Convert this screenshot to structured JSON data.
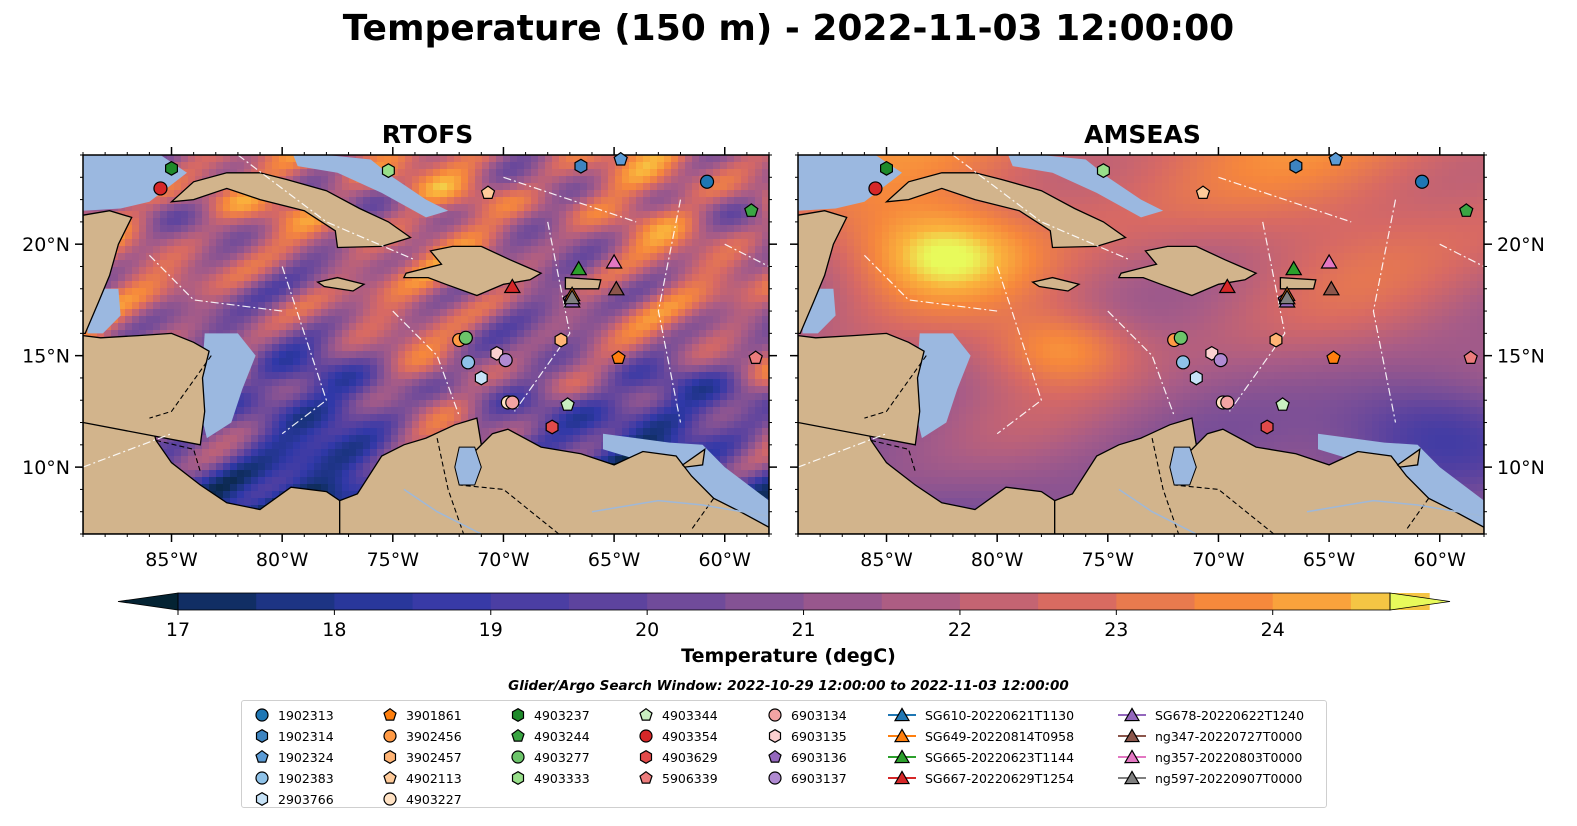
{
  "title": "Temperature (150 m) - 2022-11-03 12:00:00",
  "panels": [
    {
      "title": "RTOFS",
      "style": "rtofs"
    },
    {
      "title": "AMSEAS",
      "style": "amseas"
    }
  ],
  "map": {
    "lon_range": [
      -89,
      -58
    ],
    "lat_range": [
      7,
      24
    ],
    "lon_ticks": [
      -85,
      -80,
      -75,
      -70,
      -65,
      -60
    ],
    "lon_tick_labels": [
      "85°W",
      "80°W",
      "75°W",
      "70°W",
      "65°W",
      "60°W"
    ],
    "lat_ticks": [
      10,
      15,
      20
    ],
    "lat_tick_labels": [
      "10°N",
      "15°N",
      "20°N"
    ],
    "colors": {
      "land": "#d2b48c",
      "shallow_water": "#9bb8e0"
    }
  },
  "colorbar": {
    "label": "Temperature (degC)",
    "range": [
      17,
      24.75
    ],
    "step": 0.5,
    "ticks": [
      17,
      18,
      19,
      20,
      21,
      22,
      23,
      24
    ],
    "tick_labels": [
      "17",
      "18",
      "19",
      "20",
      "21",
      "22",
      "23",
      "24"
    ],
    "extend": "both",
    "colormap": "thermal"
  },
  "legend": {
    "title": "Glider/Argo Search Window: 2022-10-29 12:00:00 to 2022-11-03 12:00:00",
    "columns": [
      [
        {
          "label": "1902313",
          "marker": "circle",
          "color": "#1f77b4"
        },
        {
          "label": "1902314",
          "marker": "hexagon",
          "color": "#3d84c0"
        },
        {
          "label": "1902324",
          "marker": "pentagon",
          "color": "#5b9bd5"
        },
        {
          "label": "1902383",
          "marker": "circle",
          "color": "#8fc2e8"
        },
        {
          "label": "2903766",
          "marker": "hexagon",
          "color": "#c6e2f7"
        }
      ],
      [
        {
          "label": "3901861",
          "marker": "pentagon",
          "color": "#ff7f0e"
        },
        {
          "label": "3902456",
          "marker": "circle",
          "color": "#ff9a45"
        },
        {
          "label": "3902457",
          "marker": "hexagon",
          "color": "#ffb475"
        },
        {
          "label": "4902113",
          "marker": "pentagon",
          "color": "#ffcb9a"
        },
        {
          "label": "4903227",
          "marker": "circle",
          "color": "#ffe2c4"
        }
      ],
      [
        {
          "label": "4903237",
          "marker": "hexagon",
          "color": "#1e8a2a"
        },
        {
          "label": "4903244",
          "marker": "pentagon",
          "color": "#3aa543"
        },
        {
          "label": "4903277",
          "marker": "circle",
          "color": "#6cc46a"
        },
        {
          "label": "4903333",
          "marker": "hexagon",
          "color": "#98df8a"
        }
      ],
      [
        {
          "label": "4903344",
          "marker": "pentagon",
          "color": "#c9efc0"
        },
        {
          "label": "4903354",
          "marker": "circle",
          "color": "#d62728"
        },
        {
          "label": "4903629",
          "marker": "hexagon",
          "color": "#e24a4a"
        },
        {
          "label": "5906339",
          "marker": "pentagon",
          "color": "#ec7c7c"
        }
      ],
      [
        {
          "label": "6903134",
          "marker": "circle",
          "color": "#f4a3a3"
        },
        {
          "label": "6903135",
          "marker": "hexagon",
          "color": "#fbd0d0"
        },
        {
          "label": "6903136",
          "marker": "pentagon",
          "color": "#9467bd"
        },
        {
          "label": "6903137",
          "marker": "circle",
          "color": "#b08ad2"
        }
      ],
      [
        {
          "label": "SG610-20220621T1130",
          "marker": "triangle",
          "color": "#1f77b4"
        },
        {
          "label": "SG649-20220814T0958",
          "marker": "triangle",
          "color": "#ff7f0e"
        },
        {
          "label": "SG665-20220623T1144",
          "marker": "triangle",
          "color": "#2ca02c"
        },
        {
          "label": "SG667-20220629T1254",
          "marker": "triangle",
          "color": "#d62728"
        }
      ],
      [
        {
          "label": "SG678-20220622T1240",
          "marker": "triangle",
          "color": "#9467bd"
        },
        {
          "label": "ng347-20220727T0000",
          "marker": "triangle",
          "color": "#8c564b"
        },
        {
          "label": "ng357-20220803T0000",
          "marker": "triangle",
          "color": "#e377c2"
        },
        {
          "label": "ng597-20220907T0000",
          "marker": "triangle",
          "color": "#7f7f7f"
        }
      ]
    ]
  },
  "observations": [
    {
      "id": "1902313",
      "lon": -60.8,
      "lat": 22.8,
      "marker": "circle",
      "color": "#1f77b4"
    },
    {
      "id": "1902314",
      "lon": -66.5,
      "lat": 23.5,
      "marker": "hexagon",
      "color": "#3d84c0"
    },
    {
      "id": "1902324",
      "lon": -64.7,
      "lat": 23.8,
      "marker": "pentagon",
      "color": "#5b9bd5"
    },
    {
      "id": "1902383",
      "lon": -71.6,
      "lat": 14.7,
      "marker": "circle",
      "color": "#8fc2e8"
    },
    {
      "id": "2903766",
      "lon": -71.0,
      "lat": 14.0,
      "marker": "hexagon",
      "color": "#c6e2f7"
    },
    {
      "id": "3901861",
      "lon": -64.8,
      "lat": 14.9,
      "marker": "pentagon",
      "color": "#ff7f0e"
    },
    {
      "id": "3902456",
      "lon": -72.0,
      "lat": 15.7,
      "marker": "circle",
      "color": "#ff9a45"
    },
    {
      "id": "3902457",
      "lon": -67.4,
      "lat": 15.7,
      "marker": "hexagon",
      "color": "#ffb475"
    },
    {
      "id": "4902113",
      "lon": -70.7,
      "lat": 22.3,
      "marker": "pentagon",
      "color": "#ffcb9a"
    },
    {
      "id": "4903227",
      "lon": -69.8,
      "lat": 12.9,
      "marker": "circle",
      "color": "#ffe2c4"
    },
    {
      "id": "4903237",
      "lon": -85.0,
      "lat": 23.4,
      "marker": "hexagon",
      "color": "#1e8a2a"
    },
    {
      "id": "4903244",
      "lon": -58.8,
      "lat": 21.5,
      "marker": "pentagon",
      "color": "#3aa543"
    },
    {
      "id": "4903277",
      "lon": -71.7,
      "lat": 15.8,
      "marker": "circle",
      "color": "#6cc46a"
    },
    {
      "id": "4903333",
      "lon": -75.2,
      "lat": 23.3,
      "marker": "hexagon",
      "color": "#98df8a"
    },
    {
      "id": "4903344",
      "lon": -67.1,
      "lat": 12.8,
      "marker": "pentagon",
      "color": "#c9efc0"
    },
    {
      "id": "4903354",
      "lon": -85.5,
      "lat": 22.5,
      "marker": "circle",
      "color": "#d62728"
    },
    {
      "id": "4903629",
      "lon": -67.8,
      "lat": 11.8,
      "marker": "hexagon",
      "color": "#e24a4a"
    },
    {
      "id": "5906339",
      "lon": -58.6,
      "lat": 14.9,
      "marker": "pentagon",
      "color": "#ec7c7c"
    },
    {
      "id": "6903134",
      "lon": -69.6,
      "lat": 12.9,
      "marker": "circle",
      "color": "#f4a3a3"
    },
    {
      "id": "6903135",
      "lon": -70.3,
      "lat": 15.1,
      "marker": "hexagon",
      "color": "#fbd0d0"
    },
    {
      "id": "6903136",
      "lon": -67.0,
      "lat": 17.5,
      "marker": "pentagon",
      "color": "#9467bd"
    },
    {
      "id": "6903137",
      "lon": -69.9,
      "lat": 14.8,
      "marker": "circle",
      "color": "#b08ad2"
    },
    {
      "id": "SG610-20220621T1130",
      "lon": -66.9,
      "lat": 17.6,
      "marker": "triangle",
      "color": "#1f77b4"
    },
    {
      "id": "SG649-20220814T0958",
      "lon": -66.9,
      "lat": 17.75,
      "marker": "triangle",
      "color": "#ff7f0e"
    },
    {
      "id": "SG665-20220623T1144",
      "lon": -66.6,
      "lat": 18.9,
      "marker": "triangle",
      "color": "#2ca02c"
    },
    {
      "id": "SG667-20220629T1254",
      "lon": -69.6,
      "lat": 18.1,
      "marker": "triangle",
      "color": "#d62728"
    },
    {
      "id": "SG678-20220622T1240",
      "lon": -66.9,
      "lat": 17.45,
      "marker": "triangle",
      "color": "#9467bd"
    },
    {
      "id": "ng347-20220727T0000",
      "lon": -64.9,
      "lat": 18.0,
      "marker": "triangle",
      "color": "#8c564b"
    },
    {
      "id": "ng357-20220803T0000",
      "lon": -65.0,
      "lat": 19.2,
      "marker": "triangle",
      "color": "#e377c2"
    },
    {
      "id": "ng597-20220907T0000",
      "lon": -66.9,
      "lat": 17.6,
      "marker": "triangle",
      "color": "#7f7f7f"
    }
  ]
}
